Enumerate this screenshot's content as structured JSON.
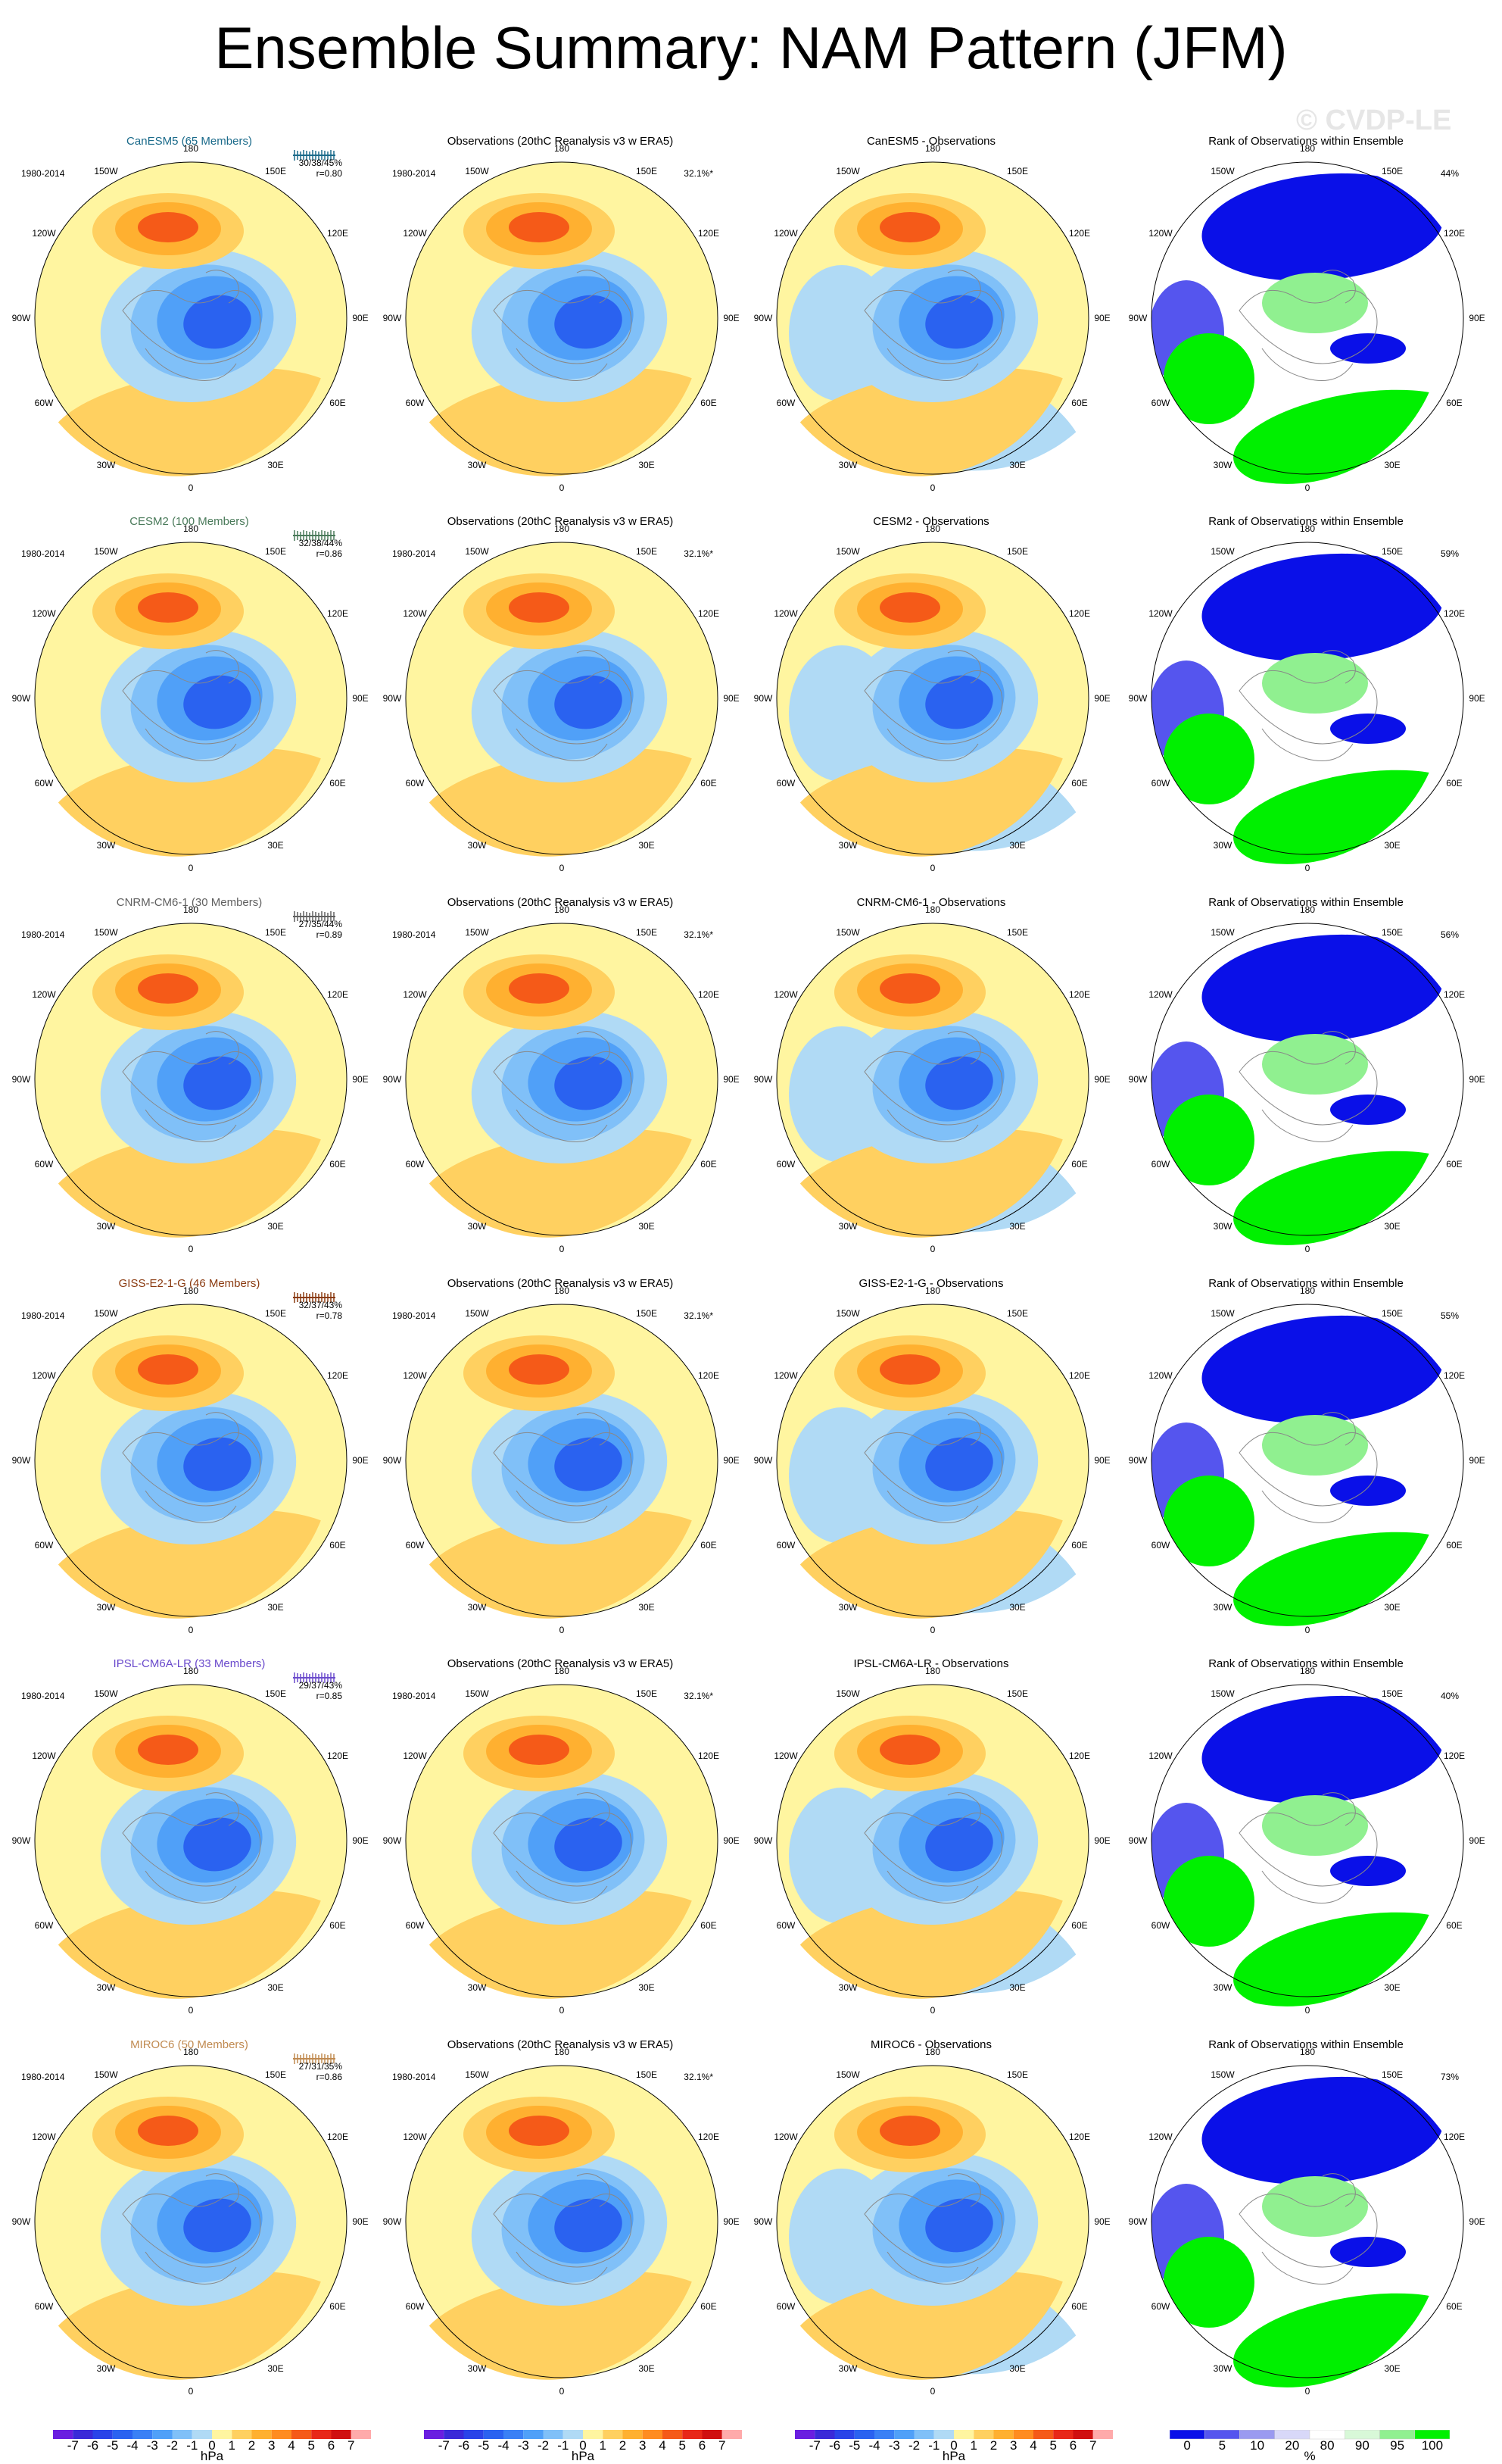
{
  "title": "Ensemble Summary: NAM Pattern (JFM)",
  "watermark": "© CVDP-LE",
  "period": "1980-2014",
  "obs_title": "Observations (20thC Reanalysis v3 w ERA5)",
  "obs_pct": "32.1%*",
  "rank_title": "Rank of Observations within Ensemble",
  "longitude_labels": [
    "180",
    "150E",
    "120E",
    "90E",
    "60E",
    "30E",
    "0",
    "30W",
    "60W",
    "90W",
    "120W",
    "150W"
  ],
  "models": [
    {
      "name": "CanESM5 (65 Members)",
      "diff": "CanESM5 - Observations",
      "stat": "30/38/45%",
      "r": "r=0.80",
      "rank_pct": "44%",
      "color": "#1a6a8a"
    },
    {
      "name": "CESM2 (100 Members)",
      "diff": "CESM2 - Observations",
      "stat": "32/38/44%",
      "r": "r=0.86",
      "rank_pct": "59%",
      "color": "#4a7a5a"
    },
    {
      "name": "CNRM-CM6-1 (30 Members)",
      "diff": "CNRM-CM6-1 - Observations",
      "stat": "27/35/44%",
      "r": "r=0.89",
      "rank_pct": "56%",
      "color": "#606060"
    },
    {
      "name": "GISS-E2-1-G (46 Members)",
      "diff": "GISS-E2-1-G - Observations",
      "stat": "32/37/43%",
      "r": "r=0.78",
      "rank_pct": "55%",
      "color": "#8a3a10"
    },
    {
      "name": "IPSL-CM6A-LR (33 Members)",
      "diff": "IPSL-CM6A-LR - Observations",
      "stat": "29/37/43%",
      "r": "r=0.85",
      "rank_pct": "40%",
      "color": "#6a4acc"
    },
    {
      "name": "MIROC6 (50 Members)",
      "diff": "MIROC6 - Observations",
      "stat": "27/31/35%",
      "r": "r=0.86",
      "rank_pct": "73%",
      "color": "#c08a50"
    }
  ],
  "colorbars": {
    "hpa_ticks": [
      "-7",
      "-6",
      "-5",
      "-4",
      "-3",
      "-2",
      "-1",
      "0",
      "1",
      "2",
      "3",
      "4",
      "5",
      "6",
      "7"
    ],
    "hpa_unit": "hPa",
    "hpa_colors": [
      "#6a1ee0",
      "#3a2ad8",
      "#2a44e8",
      "#2a62f0",
      "#3a80f5",
      "#50a0f8",
      "#80c0f8",
      "#b0daf5",
      "#fff5a0",
      "#ffd060",
      "#ffb030",
      "#ff8c20",
      "#f55a18",
      "#e82818",
      "#d01010",
      "#ffaaaa"
    ],
    "rank_ticks": [
      "0",
      "5",
      "10",
      "20",
      "80",
      "90",
      "95",
      "100"
    ],
    "rank_unit": "%",
    "rank_colors": [
      "#0a10e8",
      "#5555ee",
      "#9a9af0",
      "#d8d8f8",
      "#ffffff",
      "#d8f8d8",
      "#90f090",
      "#00f000"
    ]
  }
}
